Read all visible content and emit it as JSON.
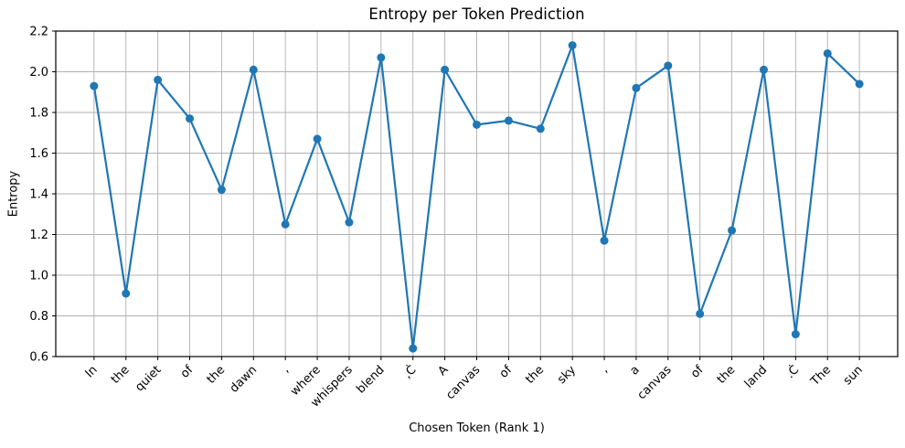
{
  "figure": {
    "background": "#ffffff"
  },
  "chart_data": {
    "type": "line",
    "title": "Entropy per Token Prediction",
    "xlabel": "Chosen Token (Rank 1)",
    "ylabel": "Entropy",
    "categories": [
      "In",
      "the",
      "quiet",
      "of",
      "the",
      "dawn",
      ",",
      "where",
      "whispers",
      "blend",
      ",Ċ",
      "A",
      "canvas",
      "of",
      "the",
      "sky",
      ",",
      "a",
      "canvas",
      "of",
      "the",
      "land",
      ".Ċ",
      "The",
      "sun"
    ],
    "values": [
      1.93,
      0.91,
      1.96,
      1.77,
      1.42,
      2.01,
      1.25,
      1.67,
      1.26,
      2.07,
      0.64,
      2.01,
      1.74,
      1.76,
      1.72,
      2.13,
      1.17,
      1.92,
      2.03,
      0.81,
      1.22,
      2.01,
      0.71,
      2.09,
      1.94
    ],
    "ylim": [
      0.6,
      2.2
    ],
    "y_ticks": [
      "0.6",
      "0.8",
      "1.0",
      "1.2",
      "1.4",
      "1.6",
      "1.8",
      "2.0",
      "2.2"
    ],
    "grid": true,
    "tick_rotation_deg": 45,
    "line_color": "#1f77b4",
    "marker": "circle",
    "grid_color": "#b0b0b0",
    "spine_color": "#000000",
    "text_color": "#000000"
  }
}
